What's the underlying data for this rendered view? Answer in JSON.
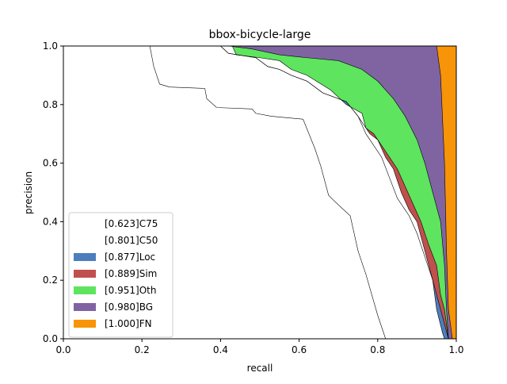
{
  "chart_data": {
    "type": "area",
    "title": "bbox-bicycle-large",
    "xlabel": "recall",
    "ylabel": "precision",
    "xlim": [
      0.0,
      1.0
    ],
    "ylim": [
      0.0,
      1.0
    ],
    "x_ticks": [
      "0.0",
      "0.2",
      "0.4",
      "0.6",
      "0.8",
      "1.0"
    ],
    "y_ticks": [
      "0.0",
      "0.2",
      "0.4",
      "0.6",
      "0.8",
      "1.0"
    ],
    "grid": false,
    "legend_position": "lower-left",
    "series": [
      {
        "name": "[0.623]C75",
        "color": "#ffffff",
        "points": [
          [
            0.0,
            1.0
          ],
          [
            0.22,
            1.0
          ],
          [
            0.23,
            0.93
          ],
          [
            0.245,
            0.87
          ],
          [
            0.27,
            0.86
          ],
          [
            0.36,
            0.855
          ],
          [
            0.365,
            0.82
          ],
          [
            0.39,
            0.79
          ],
          [
            0.48,
            0.785
          ],
          [
            0.49,
            0.77
          ],
          [
            0.53,
            0.76
          ],
          [
            0.61,
            0.75
          ],
          [
            0.64,
            0.65
          ],
          [
            0.655,
            0.59
          ],
          [
            0.675,
            0.49
          ],
          [
            0.69,
            0.47
          ],
          [
            0.73,
            0.42
          ],
          [
            0.75,
            0.3
          ],
          [
            0.77,
            0.22
          ],
          [
            0.8,
            0.08
          ],
          [
            0.82,
            0.0
          ]
        ]
      },
      {
        "name": "[0.801]C50",
        "color": "#ffffff",
        "points": [
          [
            0.0,
            1.0
          ],
          [
            0.43,
            1.0
          ],
          [
            0.44,
            0.97
          ],
          [
            0.5,
            0.96
          ],
          [
            0.55,
            0.95
          ],
          [
            0.58,
            0.92
          ],
          [
            0.62,
            0.9
          ],
          [
            0.68,
            0.85
          ],
          [
            0.72,
            0.8
          ],
          [
            0.76,
            0.77
          ],
          [
            0.77,
            0.72
          ],
          [
            0.78,
            0.7
          ],
          [
            0.8,
            0.68
          ],
          [
            0.82,
            0.62
          ],
          [
            0.84,
            0.58
          ],
          [
            0.86,
            0.5
          ],
          [
            0.88,
            0.44
          ],
          [
            0.9,
            0.4
          ],
          [
            0.92,
            0.3
          ],
          [
            0.94,
            0.2
          ],
          [
            0.95,
            0.1
          ],
          [
            0.965,
            0.02
          ],
          [
            0.97,
            0.0
          ]
        ]
      },
      {
        "name": "[0.877]Loc",
        "color": "#4c7ebe",
        "points": [
          [
            0.0,
            1.0
          ],
          [
            0.4,
            1.0
          ],
          [
            0.42,
            0.975
          ],
          [
            0.49,
            0.96
          ],
          [
            0.52,
            0.93
          ],
          [
            0.55,
            0.92
          ],
          [
            0.58,
            0.9
          ],
          [
            0.62,
            0.88
          ],
          [
            0.66,
            0.84
          ],
          [
            0.72,
            0.81
          ],
          [
            0.75,
            0.76
          ],
          [
            0.77,
            0.7
          ],
          [
            0.78,
            0.68
          ],
          [
            0.81,
            0.62
          ],
          [
            0.83,
            0.55
          ],
          [
            0.85,
            0.48
          ],
          [
            0.88,
            0.42
          ],
          [
            0.9,
            0.36
          ],
          [
            0.92,
            0.28
          ],
          [
            0.94,
            0.2
          ],
          [
            0.95,
            0.15
          ],
          [
            0.96,
            0.1
          ],
          [
            0.97,
            0.05
          ],
          [
            0.98,
            0.0
          ]
        ]
      },
      {
        "name": "[0.889]Sim",
        "color": "#c0504d",
        "points": [
          [
            0.0,
            1.0
          ],
          [
            0.4,
            1.0
          ],
          [
            0.42,
            0.975
          ],
          [
            0.49,
            0.96
          ],
          [
            0.52,
            0.93
          ],
          [
            0.55,
            0.92
          ],
          [
            0.58,
            0.9
          ],
          [
            0.62,
            0.88
          ],
          [
            0.66,
            0.84
          ],
          [
            0.72,
            0.81
          ],
          [
            0.75,
            0.76
          ],
          [
            0.77,
            0.72
          ],
          [
            0.79,
            0.7
          ],
          [
            0.82,
            0.64
          ],
          [
            0.85,
            0.58
          ],
          [
            0.87,
            0.52
          ],
          [
            0.89,
            0.46
          ],
          [
            0.91,
            0.4
          ],
          [
            0.93,
            0.32
          ],
          [
            0.95,
            0.25
          ],
          [
            0.96,
            0.15
          ],
          [
            0.97,
            0.1
          ],
          [
            0.98,
            0.0
          ]
        ]
      },
      {
        "name": "[0.951]Oth",
        "color": "#5ee45e",
        "points": [
          [
            0.0,
            1.0
          ],
          [
            0.42,
            1.0
          ],
          [
            0.48,
            0.99
          ],
          [
            0.55,
            0.97
          ],
          [
            0.62,
            0.96
          ],
          [
            0.7,
            0.95
          ],
          [
            0.76,
            0.92
          ],
          [
            0.8,
            0.88
          ],
          [
            0.84,
            0.82
          ],
          [
            0.87,
            0.76
          ],
          [
            0.9,
            0.68
          ],
          [
            0.92,
            0.6
          ],
          [
            0.94,
            0.5
          ],
          [
            0.96,
            0.4
          ],
          [
            0.97,
            0.25
          ],
          [
            0.975,
            0.1
          ],
          [
            0.98,
            0.0
          ]
        ]
      },
      {
        "name": "[0.980]BG",
        "color": "#8064a2",
        "points": [
          [
            0.0,
            1.0
          ],
          [
            0.95,
            1.0
          ],
          [
            0.96,
            0.9
          ],
          [
            0.97,
            0.6
          ],
          [
            0.975,
            0.3
          ],
          [
            0.98,
            0.1
          ],
          [
            0.99,
            0.0
          ]
        ]
      },
      {
        "name": "[1.000]FN",
        "color": "#f79407",
        "points": [
          [
            0.0,
            1.0
          ],
          [
            1.0,
            1.0
          ],
          [
            1.0,
            0.0
          ]
        ]
      }
    ]
  }
}
